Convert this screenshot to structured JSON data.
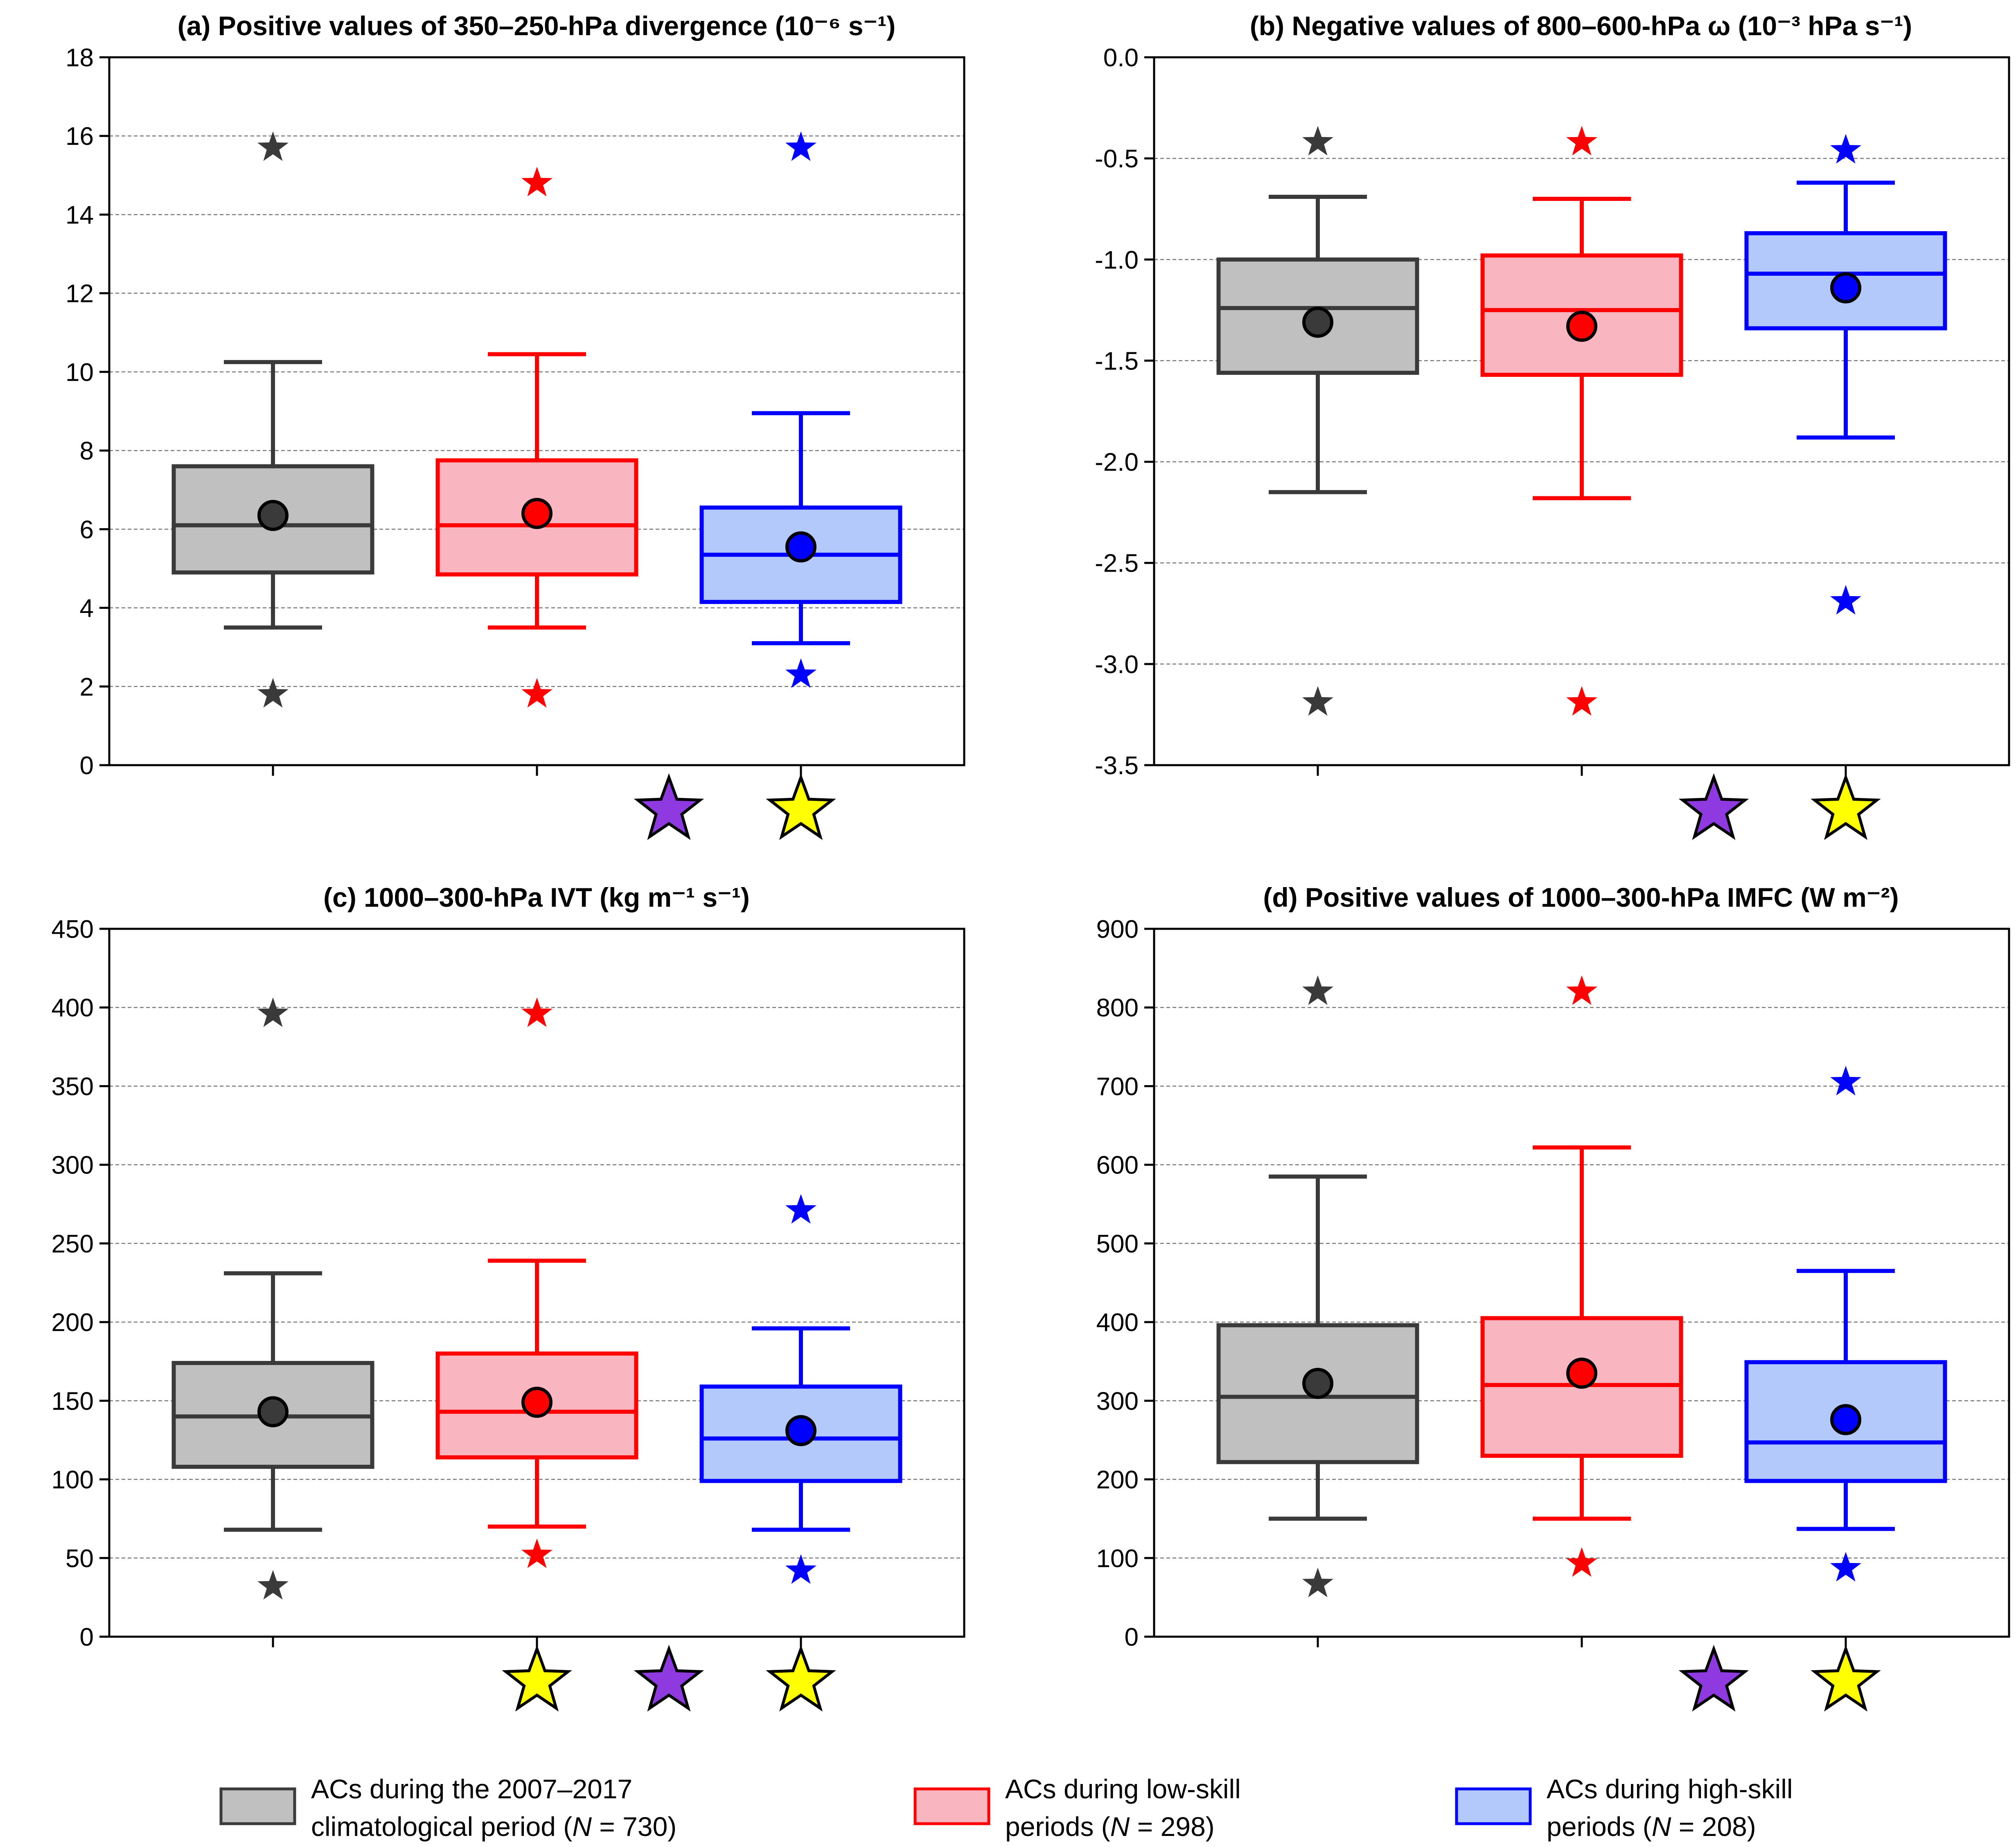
{
  "chart_data": [
    {
      "type": "box",
      "title": "(a) Positive values of 350–250-hPa divergence (10⁻⁶ s⁻¹)",
      "ylim": [
        0,
        18
      ],
      "yticks": [
        0,
        2,
        4,
        6,
        8,
        10,
        12,
        14,
        16,
        18
      ],
      "ytick_labels": [
        "0",
        "2",
        "4",
        "6",
        "8",
        "10",
        "12",
        "14",
        "16",
        "18"
      ],
      "grid": true,
      "series": [
        {
          "whisker_low": 3.5,
          "q1": 4.9,
          "median": 6.1,
          "q3": 7.6,
          "whisker_high": 10.25,
          "mean": 6.35,
          "min": 1.8,
          "max": 15.7
        },
        {
          "whisker_low": 3.5,
          "q1": 4.85,
          "median": 6.1,
          "q3": 7.75,
          "whisker_high": 10.45,
          "mean": 6.4,
          "min": 1.8,
          "max": 14.8
        },
        {
          "whisker_low": 3.1,
          "q1": 4.15,
          "median": 5.35,
          "q3": 6.55,
          "whisker_high": 8.95,
          "mean": 5.55,
          "min": 2.3,
          "max": 15.7
        }
      ],
      "significance": [
        {
          "position": 2.5,
          "color": "purple"
        },
        {
          "position": 3,
          "color": "yellow"
        }
      ]
    },
    {
      "type": "box",
      "title": "(b) Negative values of 800–600-hPa ω (10⁻³ hPa s⁻¹)",
      "ylim": [
        -3.5,
        0
      ],
      "yticks": [
        -3.5,
        -3.0,
        -2.5,
        -2.0,
        -1.5,
        -1.0,
        -0.5,
        0.0
      ],
      "ytick_labels": [
        "-3.5",
        "-3.0",
        "-2.5",
        "-2.0",
        "-1.5",
        "-1.0",
        "-0.5",
        "0.0"
      ],
      "grid": true,
      "series": [
        {
          "whisker_low": -2.15,
          "q1": -1.56,
          "median": -1.24,
          "q3": -1.0,
          "whisker_high": -0.69,
          "mean": -1.31,
          "min": -3.19,
          "max": -0.42
        },
        {
          "whisker_low": -2.18,
          "q1": -1.57,
          "median": -1.25,
          "q3": -0.98,
          "whisker_high": -0.7,
          "mean": -1.33,
          "min": -3.19,
          "max": -0.42
        },
        {
          "whisker_low": -1.88,
          "q1": -1.34,
          "median": -1.07,
          "q3": -0.87,
          "whisker_high": -0.62,
          "mean": -1.14,
          "min": -2.69,
          "max": -0.46
        }
      ],
      "significance": [
        {
          "position": 2.5,
          "color": "purple"
        },
        {
          "position": 3,
          "color": "yellow"
        }
      ]
    },
    {
      "type": "box",
      "title": "(c) 1000–300-hPa IVT (kg m⁻¹ s⁻¹)",
      "ylim": [
        0,
        450
      ],
      "yticks": [
        0,
        50,
        100,
        150,
        200,
        250,
        300,
        350,
        400,
        450
      ],
      "ytick_labels": [
        "0",
        "50",
        "100",
        "150",
        "200",
        "250",
        "300",
        "350",
        "400",
        "450"
      ],
      "grid": true,
      "series": [
        {
          "whisker_low": 68,
          "q1": 108,
          "median": 140,
          "q3": 174,
          "whisker_high": 231,
          "mean": 143,
          "min": 32,
          "max": 396
        },
        {
          "whisker_low": 70,
          "q1": 114,
          "median": 143,
          "q3": 180,
          "whisker_high": 239,
          "mean": 149,
          "min": 52,
          "max": 396
        },
        {
          "whisker_low": 68,
          "q1": 99,
          "median": 126,
          "q3": 159,
          "whisker_high": 196,
          "mean": 131,
          "min": 42,
          "max": 271
        }
      ],
      "significance": [
        {
          "position": 2,
          "color": "yellow"
        },
        {
          "position": 2.5,
          "color": "purple"
        },
        {
          "position": 3,
          "color": "yellow"
        }
      ]
    },
    {
      "type": "box",
      "title": "(d) Positive values of 1000–300-hPa IMFC (W m⁻²)",
      "ylim": [
        0,
        900
      ],
      "yticks": [
        0,
        100,
        200,
        300,
        400,
        500,
        600,
        700,
        800,
        900
      ],
      "ytick_labels": [
        "0",
        "100",
        "200",
        "300",
        "400",
        "500",
        "600",
        "700",
        "800",
        "900"
      ],
      "grid": true,
      "series": [
        {
          "whisker_low": 150,
          "q1": 222,
          "median": 305,
          "q3": 396,
          "whisker_high": 585,
          "mean": 322,
          "min": 67,
          "max": 820
        },
        {
          "whisker_low": 150,
          "q1": 230,
          "median": 320,
          "q3": 405,
          "whisker_high": 622,
          "mean": 335,
          "min": 93,
          "max": 820
        },
        {
          "whisker_low": 137,
          "q1": 198,
          "median": 247,
          "q3": 349,
          "whisker_high": 465,
          "mean": 276,
          "min": 87,
          "max": 705
        }
      ],
      "significance": [
        {
          "position": 2.5,
          "color": "purple"
        },
        {
          "position": 3,
          "color": "yellow"
        }
      ]
    }
  ],
  "styles": [
    {
      "edge": "#3a3a3a",
      "fill": "#c0c0c0"
    },
    {
      "edge": "#ff0000",
      "fill": "#f9b6c1"
    },
    {
      "edge": "#0000ff",
      "fill": "#b3c9fb"
    }
  ],
  "significance_colors": {
    "purple": "#8e3ae0",
    "yellow": "#ffff00"
  },
  "legend": [
    {
      "line1": "ACs during the 2007–2017",
      "line2_prefix": "climatological period (",
      "n_symbol": "N",
      "line2_suffix": " = 730)"
    },
    {
      "line1": "ACs during low-skill",
      "line2_prefix": "periods (",
      "n_symbol": "N",
      "line2_suffix": " = 298)"
    },
    {
      "line1": "ACs during high-skill",
      "line2_prefix": "periods (",
      "n_symbol": "N",
      "line2_suffix": " = 208)"
    }
  ]
}
